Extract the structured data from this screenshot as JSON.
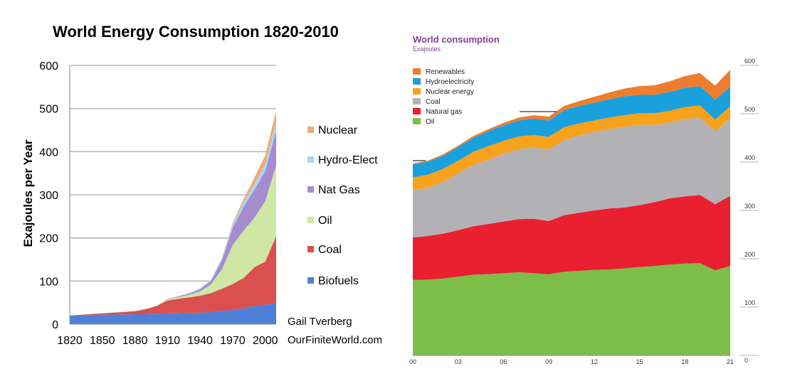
{
  "chart_data": [
    {
      "type": "area",
      "stacked": true,
      "title": "World Energy Consumption 1820-2010",
      "ylabel": "Exajoules per Year",
      "xlabel": "",
      "x": [
        1820,
        1850,
        1880,
        1890,
        1900,
        1910,
        1920,
        1930,
        1940,
        1950,
        1960,
        1970,
        1980,
        1990,
        2000,
        2010
      ],
      "xticks": [
        "1820",
        "1850",
        "1880",
        "1910",
        "1940",
        "1970",
        "2000"
      ],
      "xlim": [
        1820,
        2010
      ],
      "ylim": [
        0,
        600
      ],
      "yticks": [
        0,
        100,
        200,
        300,
        400,
        500,
        600
      ],
      "grid": true,
      "legend_position": "right",
      "series": [
        {
          "name": "Biofuels",
          "color": "#4f7fd6",
          "values": [
            20,
            22,
            23,
            23,
            24,
            25,
            25,
            26,
            26,
            28,
            30,
            33,
            37,
            42,
            45,
            49
          ]
        },
        {
          "name": "Coal",
          "color": "#d9504e",
          "values": [
            0,
            3,
            7,
            12,
            18,
            30,
            34,
            36,
            40,
            44,
            52,
            60,
            70,
            90,
            100,
            155
          ]
        },
        {
          "name": "Oil",
          "color": "#cfe6a4",
          "values": [
            0,
            0,
            0,
            0,
            1,
            3,
            4,
            6,
            10,
            20,
            45,
            90,
            110,
            115,
            140,
            165
          ]
        },
        {
          "name": "Nat Gas",
          "color": "#a58ccf",
          "values": [
            0,
            0,
            0,
            0,
            0,
            1,
            2,
            3,
            5,
            8,
            20,
            40,
            55,
            65,
            70,
            80
          ]
        },
        {
          "name": "Hydro-Elect",
          "color": "#a4d9ec",
          "values": [
            0,
            0,
            0,
            0,
            0,
            0,
            0,
            1,
            2,
            3,
            5,
            8,
            10,
            13,
            16,
            21
          ]
        },
        {
          "name": "Nuclear",
          "color": "#f2a872",
          "values": [
            0,
            0,
            0,
            0,
            0,
            0,
            0,
            0,
            0,
            0,
            1,
            3,
            8,
            15,
            20,
            25
          ]
        }
      ],
      "annotations": [
        "Gail Tverberg",
        "OurFiniteWorld.com"
      ]
    },
    {
      "type": "area",
      "stacked": true,
      "title": "World consumption",
      "subtitle": "Exajoules",
      "x": [
        0,
        1,
        2,
        3,
        4,
        5,
        6,
        7,
        8,
        9,
        10,
        11,
        12,
        13,
        14,
        15,
        16,
        17,
        18,
        19,
        20,
        21
      ],
      "xticks": [
        "00",
        "03",
        "06",
        "09",
        "12",
        "15",
        "18",
        "21"
      ],
      "xlim": [
        0,
        21
      ],
      "ylim": [
        0,
        600
      ],
      "yticks": [
        0,
        100,
        200,
        300,
        400,
        500,
        600
      ],
      "yaxis_side": "right",
      "grid": false,
      "legend_position": "top-left",
      "series": [
        {
          "name": "Oil",
          "color": "#7dbe49",
          "values": [
            156,
            157,
            159,
            163,
            167,
            168,
            170,
            172,
            170,
            168,
            173,
            175,
            177,
            178,
            180,
            183,
            185,
            188,
            190,
            191,
            176,
            185
          ]
        },
        {
          "name": "Natural gas",
          "color": "#e8202f",
          "values": [
            88,
            90,
            93,
            96,
            100,
            104,
            107,
            110,
            113,
            110,
            117,
            120,
            123,
            126,
            126,
            128,
            132,
            137,
            139,
            141,
            137,
            145
          ]
        },
        {
          "name": "Coal",
          "color": "#b2b2b4",
          "values": [
            98,
            100,
            107,
            118,
            127,
            133,
            140,
            145,
            147,
            148,
            155,
            160,
            162,
            164,
            167,
            166,
            160,
            157,
            160,
            160,
            151,
            160
          ]
        },
        {
          "name": "Nuclear energy",
          "color": "#f7a21b",
          "values": [
            26,
            27,
            27,
            26,
            27,
            28,
            27,
            26,
            26,
            26,
            27,
            25,
            24,
            24,
            24,
            24,
            24,
            24,
            25,
            25,
            24,
            25
          ]
        },
        {
          "name": "Hydroelectricity",
          "color": "#1aa0dc",
          "values": [
            27,
            27,
            27,
            28,
            29,
            31,
            32,
            33,
            34,
            34,
            35,
            36,
            37,
            38,
            39,
            38,
            38,
            39,
            40,
            40,
            41,
            41
          ]
        },
        {
          "name": "Renewables",
          "color": "#ee7d2f",
          "values": [
            2,
            2,
            3,
            3,
            4,
            4,
            5,
            6,
            7,
            8,
            9,
            10,
            12,
            14,
            16,
            18,
            20,
            22,
            24,
            27,
            29,
            35
          ]
        }
      ]
    }
  ]
}
